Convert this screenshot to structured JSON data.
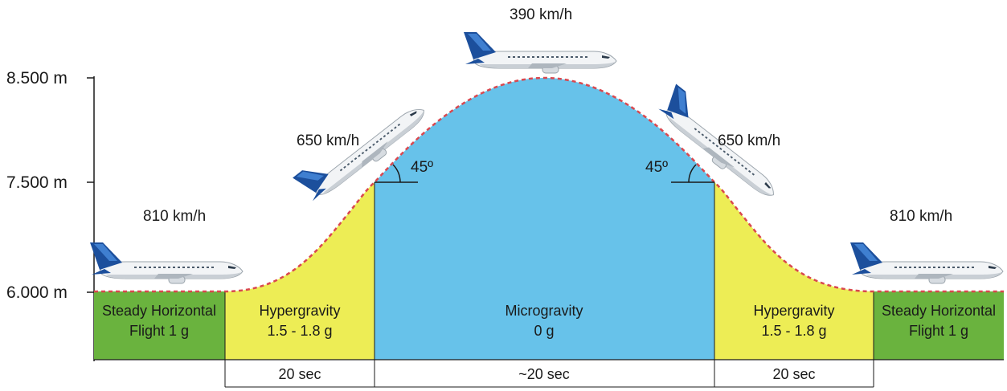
{
  "altitude_labels": {
    "top": "8.500 m",
    "middle": "7.500 m",
    "bottom": "6.000 m"
  },
  "speeds": {
    "left_level": "810 km/h",
    "left_climb": "650 km/h",
    "apex": "390 km/h",
    "right_climb": "650 km/h",
    "right_level": "810 km/h"
  },
  "angles": {
    "left": "45º",
    "right": "45º"
  },
  "phases": {
    "steady_left": {
      "line1": "Steady Horizontal",
      "line2": "Flight 1 g"
    },
    "hyper_left": {
      "line1": "Hypergravity",
      "line2": "1.5 - 1.8 g"
    },
    "micro": {
      "line1": "Microgravity",
      "line2": "0 g"
    },
    "hyper_right": {
      "line1": "Hypergravity",
      "line2": "1.5 - 1.8 g"
    },
    "steady_right": {
      "line1": "Steady Horizontal",
      "line2": "Flight 1 g"
    }
  },
  "durations": {
    "hyper_left": "20 sec",
    "micro": "~20 sec",
    "hyper_right": "20 sec"
  },
  "colors": {
    "steady": "#6ab33e",
    "hypergravity": "#eded55",
    "microgravity": "#67c2ea",
    "trajectory": "#d9484f",
    "aircraft_tail": "#1c4f9c"
  },
  "icons": {
    "aircraft": "airbus-a310-zero-g-aircraft"
  }
}
